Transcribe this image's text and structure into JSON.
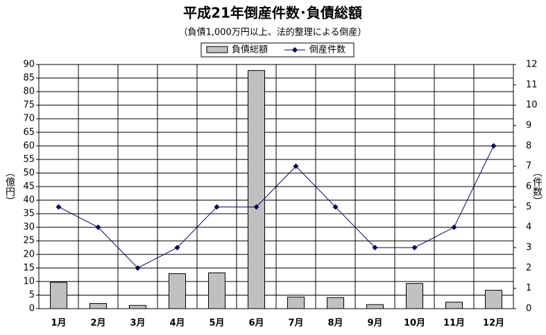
{
  "chart_data": {
    "type": "combo",
    "title": "平成21年倒産件数･負債総額",
    "subtitle": "（負債1,000万円以上、法的整理による倒産）",
    "y_label": "（億円）",
    "y2_label": "（件数）",
    "categories": [
      "1月",
      "2月",
      "3月",
      "4月",
      "5月",
      "6月",
      "7月",
      "8月",
      "9月",
      "10月",
      "11月",
      "12月"
    ],
    "series": [
      {
        "name": "負債総額",
        "type": "bar",
        "color": "#c0c0c0",
        "values": [
          9.7,
          1.9,
          1.2,
          12.9,
          13.2,
          87.8,
          4.3,
          4.1,
          1.5,
          9.3,
          2.4,
          6.8
        ]
      },
      {
        "name": "倒産件数",
        "type": "line",
        "axis": "y2",
        "color": "#000066",
        "values": [
          5,
          4,
          2,
          3,
          5,
          5,
          7,
          5,
          3,
          3,
          4,
          8
        ]
      }
    ],
    "ylim": [
      0,
      90
    ],
    "yticks": [
      0,
      5,
      10,
      15,
      20,
      25,
      30,
      35,
      40,
      45,
      50,
      55,
      60,
      65,
      70,
      75,
      80,
      85,
      90
    ],
    "y2lim": [
      0,
      12
    ],
    "y2ticks": [
      0,
      1,
      2,
      3,
      4,
      5,
      6,
      7,
      8,
      9,
      10,
      11,
      12
    ],
    "grid": true,
    "legend": "top"
  }
}
